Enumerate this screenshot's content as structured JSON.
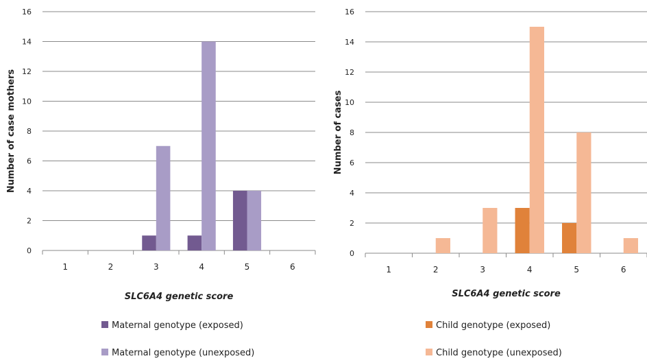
{
  "chart_data": [
    {
      "type": "bar",
      "categories": [
        "1",
        "2",
        "3",
        "4",
        "5",
        "6"
      ],
      "series": [
        {
          "name": "Maternal genotype (exposed)",
          "values": [
            0,
            0,
            1,
            1,
            4,
            0
          ],
          "color": "#725a90"
        },
        {
          "name": "Maternal genotype (unexposed)",
          "values": [
            0,
            0,
            7,
            14,
            4,
            0
          ],
          "color": "#a89cc6"
        }
      ],
      "title": "",
      "xlabel": "SLC6A4 genetic score",
      "xlabel_italic_part": "SLC6A4",
      "xlabel_rest": " genetic score",
      "ylabel": "Number of case mothers",
      "ylim": [
        0,
        16
      ],
      "yticks": [
        "0",
        "2",
        "4",
        "6",
        "8",
        "10",
        "12",
        "14",
        "16"
      ],
      "grid": true,
      "legend": "bottom"
    },
    {
      "type": "bar",
      "categories": [
        "1",
        "2",
        "3",
        "4",
        "5",
        "6"
      ],
      "series": [
        {
          "name": "Child genotype (exposed)",
          "values": [
            0,
            0,
            0,
            3,
            2,
            0
          ],
          "color": "#e0823a"
        },
        {
          "name": "Child genotype (unexposed)",
          "values": [
            0,
            1,
            3,
            15,
            8,
            1
          ],
          "color": "#f5b895"
        }
      ],
      "title": "",
      "xlabel": "SLC6A4 genetic score",
      "xlabel_italic_part": "SLC6A4",
      "xlabel_rest": " genetic score",
      "ylabel": "Number of cases",
      "ylim": [
        0,
        16
      ],
      "yticks": [
        "0",
        "2",
        "4",
        "6",
        "8",
        "10",
        "12",
        "14",
        "16"
      ],
      "grid": true,
      "legend": "bottom"
    }
  ]
}
